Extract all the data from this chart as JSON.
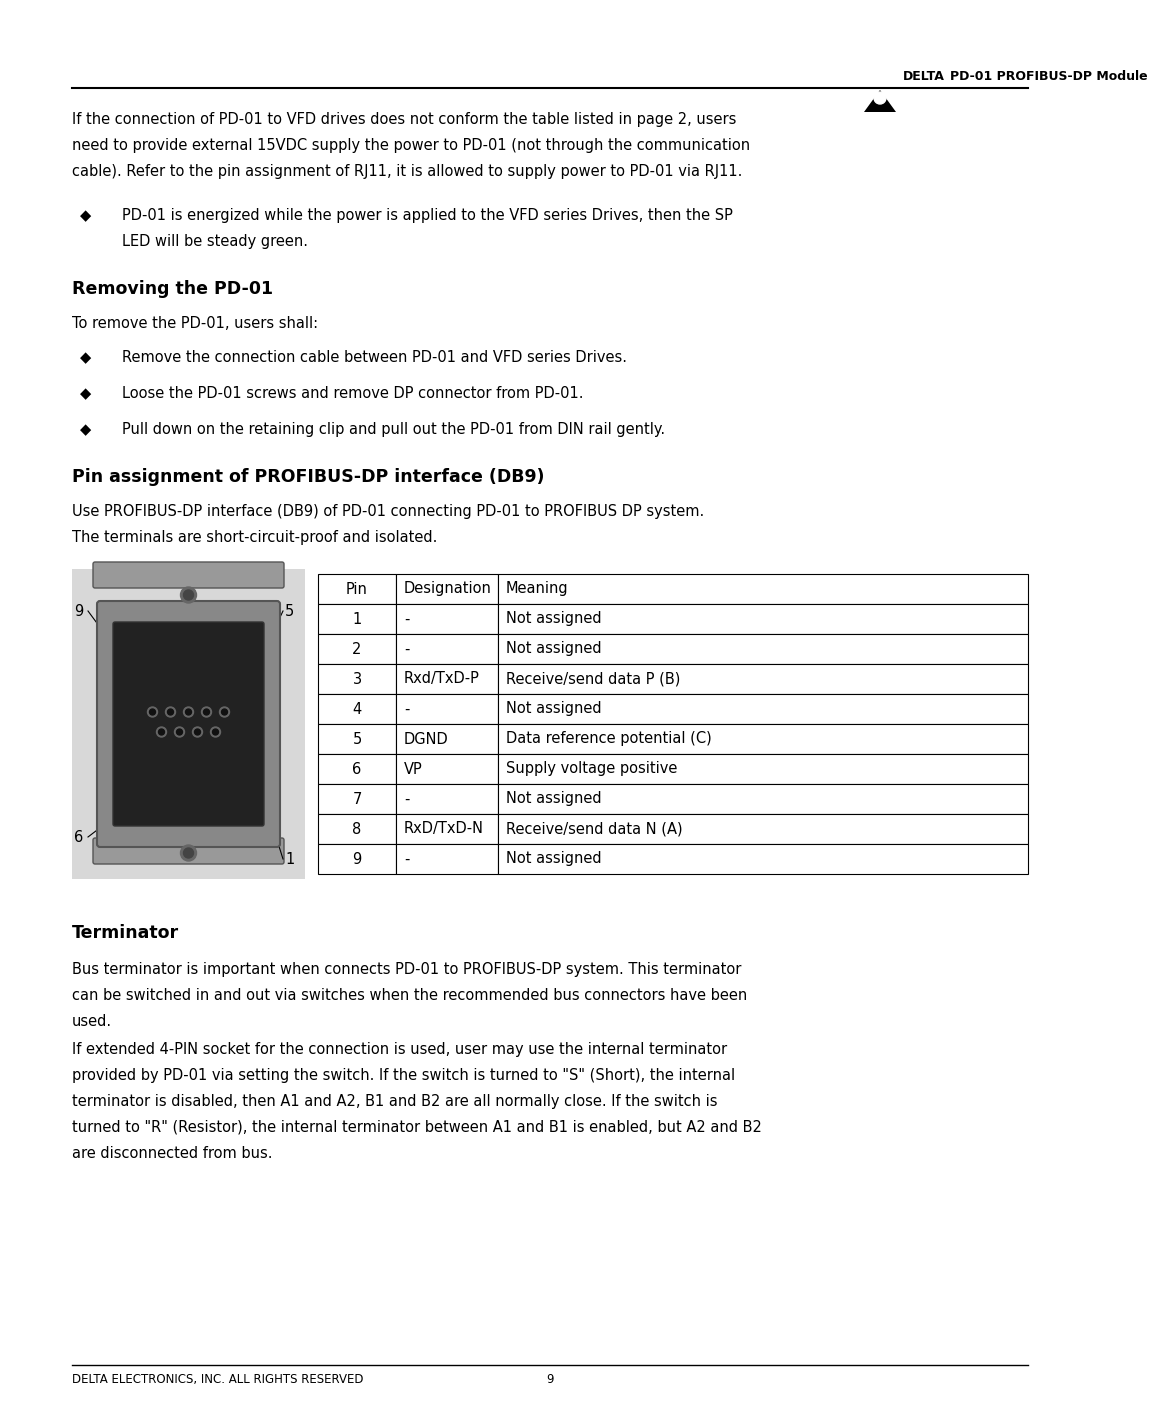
{
  "page_width": 10.8,
  "page_height": 13.97,
  "bg_color": "#ffffff",
  "header_title": "PD-01 PROFIBUS-DP Module",
  "footer_text": "DELTA ELECTRONICS, INC. ALL RIGHTS RESERVED",
  "footer_page": "9",
  "intro_lines": [
    "If the connection of PD-01 to VFD drives does not conform the table listed in page 2, users",
    "need to provide external 15VDC supply the power to PD-01 (not through the communication",
    "cable). Refer to the pin assignment of RJ11, it is allowed to supply power to PD-01 via RJ11."
  ],
  "bullet1_lines": [
    "PD-01 is energized while the power is applied to the VFD series Drives, then the SP",
    "LED will be steady green."
  ],
  "section1_title": "Removing the PD-01",
  "section1_intro": "To remove the PD-01, users shall:",
  "section1_bullets": [
    "Remove the connection cable between PD-01 and VFD series Drives.",
    "Loose the PD-01 screws and remove DP connector from PD-01.",
    "Pull down on the retaining clip and pull out the PD-01 from DIN rail gently."
  ],
  "section2_title": "Pin assignment of PROFIBUS-DP interface (DB9)",
  "section2_intro_lines": [
    "Use PROFIBUS-DP interface (DB9) of PD-01 connecting PD-01 to PROFIBUS DP system.",
    "The terminals are short-circuit-proof and isolated."
  ],
  "table_headers": [
    "Pin",
    "Designation",
    "Meaning"
  ],
  "table_rows": [
    [
      "1",
      "-",
      "Not assigned"
    ],
    [
      "2",
      "-",
      "Not assigned"
    ],
    [
      "3",
      "Rxd/TxD-P",
      "Receive/send data P (B)"
    ],
    [
      "4",
      "-",
      "Not assigned"
    ],
    [
      "5",
      "DGND",
      "Data reference potential (C)"
    ],
    [
      "6",
      "VP",
      "Supply voltage positive"
    ],
    [
      "7",
      "-",
      "Not assigned"
    ],
    [
      "8",
      "RxD/TxD-N",
      "Receive/send data N (A)"
    ],
    [
      "9",
      "-",
      "Not assigned"
    ]
  ],
  "section3_title": "Terminator",
  "section3_lines": [
    "Bus terminator is important when connects PD-01 to PROFIBUS-DP system. This terminator",
    "can be switched in and out via switches when the recommended bus connectors have been",
    "used.",
    "If extended 4-PIN socket for the connection is used, user may use the internal terminator",
    "provided by PD-01 via setting the switch. If the switch is turned to \"S\" (Short), the internal",
    "terminator is disabled, then A1 and A2, B1 and B2 are all normally close. If the switch is",
    "turned to \"R\" (Resistor), the internal terminator between A1 and B1 is enabled, but A2 and B2",
    "are disconnected from bus."
  ]
}
